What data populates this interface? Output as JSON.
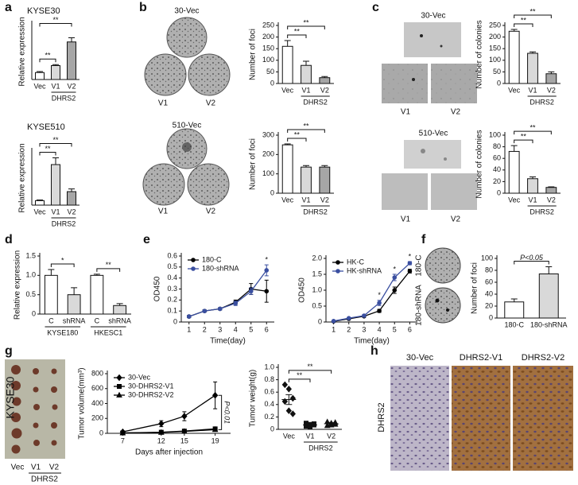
{
  "panel_letters": [
    "a",
    "b",
    "c",
    "d",
    "e",
    "f",
    "g",
    "h"
  ],
  "image_labels": {
    "b_top": [
      "30-Vec",
      "V1",
      "V2"
    ],
    "b_bottom": [
      "510-Vec",
      "V1",
      "V2"
    ],
    "c_top": [
      "30-Vec",
      "V1",
      "V2"
    ],
    "c_bottom": [
      "510-Vec",
      "V1",
      "V2"
    ],
    "f": [
      "180-C",
      "180-shRNA"
    ],
    "g": {
      "title": "KYSE30",
      "lanes": [
        "Vec",
        "V1",
        "V2"
      ],
      "group": "DHRS2"
    },
    "h": {
      "columns": [
        "30-Vec",
        "DHRS2-V1",
        "DHRS2-V2"
      ],
      "row": "DHRS2"
    }
  },
  "chart_data": [
    {
      "type": "bar",
      "title": "KYSE30",
      "ylabel": "Relative expression",
      "categories": [
        "Vec",
        "V1",
        "V2"
      ],
      "groups": [
        {
          "label": "DHRS2",
          "span": [
            1,
            2
          ]
        }
      ],
      "values": [
        1.0,
        2.0,
        5.4
      ],
      "errors": [
        0.15,
        0.15,
        0.6
      ],
      "colors": [
        "#ffffff",
        "#d9d9d9",
        "#a6a6a6"
      ],
      "ylim": [
        0,
        8
      ],
      "significance": [
        {
          "label": "**",
          "span": [
            0,
            1
          ]
        },
        {
          "label": "**",
          "span": [
            0,
            2
          ]
        }
      ]
    },
    {
      "type": "bar",
      "title": "KYSE510",
      "ylabel": "Relative expression",
      "categories": [
        "Vec",
        "V1",
        "V2"
      ],
      "groups": [
        {
          "label": "DHRS2",
          "span": [
            1,
            2
          ]
        }
      ],
      "values": [
        1.0,
        9.0,
        3.0
      ],
      "errors": [
        0.15,
        1.5,
        0.6
      ],
      "colors": [
        "#ffffff",
        "#d9d9d9",
        "#a6a6a6"
      ],
      "ylim": [
        0,
        12
      ],
      "significance": [
        {
          "label": "**",
          "span": [
            0,
            1
          ]
        },
        {
          "label": "**",
          "span": [
            0,
            2
          ]
        }
      ]
    },
    {
      "type": "bar",
      "ylabel": "Number of foci",
      "categories": [
        "Vec",
        "V1",
        "V2"
      ],
      "groups": [
        {
          "label": "DHRS2",
          "span": [
            1,
            2
          ]
        }
      ],
      "values": [
        160,
        78,
        25
      ],
      "errors": [
        25,
        18,
        5
      ],
      "colors": [
        "#ffffff",
        "#d9d9d9",
        "#a6a6a6"
      ],
      "ylim": [
        0,
        250
      ],
      "yticks": [
        0,
        50,
        100,
        150,
        200,
        250
      ],
      "significance": [
        {
          "label": "**",
          "span": [
            0,
            1
          ]
        },
        {
          "label": "**",
          "span": [
            0,
            2
          ]
        }
      ]
    },
    {
      "type": "bar",
      "ylabel": "Number of foci",
      "categories": [
        "Vec",
        "V1",
        "V2"
      ],
      "groups": [
        {
          "label": "DHRS2",
          "span": [
            1,
            2
          ]
        }
      ],
      "values": [
        250,
        135,
        135
      ],
      "errors": [
        5,
        8,
        8
      ],
      "colors": [
        "#ffffff",
        "#d9d9d9",
        "#a6a6a6"
      ],
      "ylim": [
        0,
        300
      ],
      "yticks": [
        0,
        100,
        200,
        300
      ],
      "significance": [
        {
          "label": "**",
          "span": [
            0,
            1
          ]
        },
        {
          "label": "**",
          "span": [
            0,
            2
          ]
        }
      ]
    },
    {
      "type": "bar",
      "ylabel": "Number of colonies",
      "categories": [
        "Vec",
        "V1",
        "V2"
      ],
      "groups": [
        {
          "label": "DHRS2",
          "span": [
            1,
            2
          ]
        }
      ],
      "values": [
        225,
        130,
        42
      ],
      "errors": [
        8,
        6,
        8
      ],
      "colors": [
        "#ffffff",
        "#d9d9d9",
        "#a6a6a6"
      ],
      "ylim": [
        0,
        250
      ],
      "yticks": [
        0,
        50,
        100,
        150,
        200,
        250
      ],
      "significance": [
        {
          "label": "**",
          "span": [
            0,
            1
          ]
        },
        {
          "label": "**",
          "span": [
            0,
            2
          ]
        }
      ]
    },
    {
      "type": "bar",
      "ylabel": "Number of colonies",
      "categories": [
        "Vec",
        "V1",
        "V2"
      ],
      "groups": [
        {
          "label": "DHRS2",
          "span": [
            1,
            2
          ]
        }
      ],
      "values": [
        72,
        25,
        10
      ],
      "errors": [
        10,
        3,
        1
      ],
      "colors": [
        "#ffffff",
        "#d9d9d9",
        "#a6a6a6"
      ],
      "ylim": [
        0,
        100
      ],
      "yticks": [
        0,
        20,
        40,
        60,
        80,
        100
      ],
      "significance": [
        {
          "label": "**",
          "span": [
            0,
            1
          ]
        },
        {
          "label": "**",
          "span": [
            0,
            2
          ]
        }
      ]
    },
    {
      "type": "bar",
      "ylabel": "Relative expression",
      "categories": [
        "C",
        "shRNA",
        "C",
        "shRNA"
      ],
      "groups": [
        {
          "label": "KYSE180",
          "span": [
            0,
            1
          ]
        },
        {
          "label": "HKESC1",
          "span": [
            2,
            3
          ]
        }
      ],
      "values": [
        1.0,
        0.5,
        1.0,
        0.22
      ],
      "errors": [
        0.15,
        0.18,
        0.03,
        0.05
      ],
      "colors": [
        "#ffffff",
        "#d9d9d9",
        "#ffffff",
        "#d9d9d9"
      ],
      "ylim": [
        0,
        1.5
      ],
      "yticks": [
        0,
        0.5,
        {
          "value": 1,
          "label": "1.0"
        },
        1.5
      ],
      "significance": [
        {
          "label": "*",
          "span": [
            0,
            1
          ]
        },
        {
          "label": "**",
          "span": [
            2,
            3
          ]
        }
      ]
    },
    {
      "type": "line",
      "ylabel": "OD450",
      "xlabel": "Time(day)",
      "x": [
        1,
        2,
        3,
        4,
        5,
        6
      ],
      "xlim": [
        0.5,
        6.5
      ],
      "xticks": [
        1,
        2,
        3,
        4,
        5,
        6
      ],
      "ylim": [
        0,
        0.6
      ],
      "yticks": [
        0,
        0.1,
        0.2,
        0.3,
        0.4,
        0.5,
        0.6
      ],
      "legend": "upper-left",
      "series": [
        {
          "name": "180-C",
          "color": "#000000",
          "marker": "circle",
          "values": [
            0.05,
            0.1,
            0.12,
            0.18,
            0.3,
            0.28
          ],
          "errors": [
            0.01,
            0.01,
            0.01,
            0.02,
            0.05,
            0.1
          ]
        },
        {
          "name": "180-shRNA",
          "color": "#3a4fa0",
          "marker": "circle",
          "values": [
            0.05,
            0.1,
            0.12,
            0.17,
            0.28,
            0.47
          ],
          "errors": [
            0.01,
            0.01,
            0.01,
            0.02,
            0.03,
            0.05
          ]
        }
      ],
      "annotations": [
        {
          "label": "*",
          "x": 6
        }
      ]
    },
    {
      "type": "line",
      "ylabel": "OD450",
      "xlabel": "Time(day)",
      "x": [
        1,
        2,
        3,
        4,
        5,
        6
      ],
      "xlim": [
        0.5,
        6.5
      ],
      "xticks": [
        1,
        2,
        3,
        4,
        5,
        6
      ],
      "ylim": [
        0,
        2
      ],
      "yticks": [
        0,
        0.5,
        {
          "value": 1,
          "label": "1.0"
        },
        1.5,
        {
          "value": 2,
          "label": "2.0"
        }
      ],
      "legend": "upper-left",
      "series": [
        {
          "name": "HK-C",
          "color": "#000000",
          "marker": "circle",
          "values": [
            0.02,
            0.1,
            0.18,
            0.35,
            1.0,
            1.6
          ],
          "errors": [
            0.01,
            0.02,
            0.02,
            0.05,
            0.1,
            0.06
          ]
        },
        {
          "name": "HK-shRNA",
          "color": "#3a4fa0",
          "marker": "circle",
          "values": [
            0.03,
            0.12,
            0.2,
            0.6,
            1.4,
            1.85
          ],
          "errors": [
            0.01,
            0.02,
            0.03,
            0.08,
            0.1,
            0.05
          ]
        }
      ],
      "annotations": [
        {
          "label": "*",
          "x": 4
        },
        {
          "label": "*",
          "x": 5
        },
        {
          "label": "*",
          "x": 6
        }
      ]
    },
    {
      "type": "bar",
      "ylabel": "Number of foci",
      "categories": [
        "180-C",
        "180-shRNA"
      ],
      "values": [
        27,
        74
      ],
      "errors": [
        5,
        12
      ],
      "colors": [
        "#ffffff",
        "#d9d9d9"
      ],
      "ylim": [
        0,
        100
      ],
      "yticks": [
        0,
        20,
        40,
        60,
        80,
        100
      ],
      "significance": [
        {
          "label": "P<0.05",
          "span": [
            0,
            1
          ]
        }
      ]
    },
    {
      "type": "line",
      "ylabel": "Tumor volume(mm³)",
      "xlabel": "Days after injection",
      "x": [
        7,
        12,
        15,
        19
      ],
      "xlim": [
        5,
        21
      ],
      "xticks": [
        7,
        12,
        15,
        19
      ],
      "ylim": [
        0,
        800
      ],
      "yticks": [
        0,
        200,
        400,
        600,
        800
      ],
      "legend": "upper-left",
      "series": [
        {
          "name": "30-Vec",
          "color": "#000000",
          "marker": "diamond",
          "values": [
            20,
            130,
            230,
            510
          ],
          "errors": [
            10,
            40,
            60,
            180
          ]
        },
        {
          "name": "30-DHRS2-V1",
          "color": "#000000",
          "marker": "square",
          "values": [
            5,
            15,
            30,
            60
          ],
          "errors": [
            3,
            5,
            8,
            15
          ]
        },
        {
          "name": "30-DHRS2-V2",
          "color": "#000000",
          "marker": "triangle",
          "values": [
            5,
            12,
            25,
            50
          ],
          "errors": [
            3,
            5,
            8,
            15
          ]
        }
      ],
      "annotations": [
        {
          "label": "P<0.01",
          "x": 19
        }
      ]
    },
    {
      "type": "dot",
      "ylabel": "Tumor weight(g)",
      "categories": [
        "Vec",
        "V1",
        "V2"
      ],
      "groups": [
        {
          "label": "DHRS2",
          "span": [
            1,
            2
          ]
        }
      ],
      "markers": [
        "diamond",
        "square",
        "triangle"
      ],
      "points": [
        [
          0.72,
          0.65,
          0.5,
          0.45,
          0.3,
          0.25
        ],
        [
          0.1,
          0.08,
          0.07,
          0.05,
          0.04,
          0.09
        ],
        [
          0.12,
          0.1,
          0.08,
          0.06,
          0.07,
          0.11
        ]
      ],
      "values": [
        0.48,
        0.07,
        0.09
      ],
      "errors": [
        0.08,
        0.02,
        0.02
      ],
      "ylim": [
        0,
        1
      ],
      "yticks": [
        0,
        0.2,
        0.4,
        0.6,
        0.8,
        {
          "value": 1,
          "label": "1.0"
        }
      ],
      "significance": [
        {
          "label": "**",
          "span": [
            0,
            1
          ]
        },
        {
          "label": "**",
          "span": [
            0,
            2
          ]
        }
      ]
    }
  ]
}
